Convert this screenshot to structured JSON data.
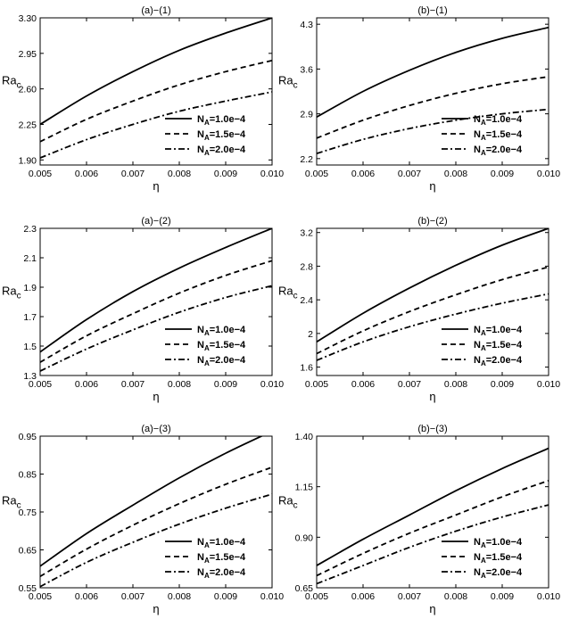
{
  "figure": {
    "line_color": "#000000",
    "line_styles": [
      "solid",
      "dashed",
      "dashdot"
    ]
  },
  "chart_data": [
    {
      "type": "line",
      "title": "(a)−(1)",
      "xlabel": "η",
      "ylabel_main": "Ra",
      "ylabel_sub": "c",
      "xlim": [
        0.005,
        0.01
      ],
      "ylim": [
        1.85,
        3.3
      ],
      "x_ticks": [
        0.005,
        0.006,
        0.007,
        0.008,
        0.009,
        0.01
      ],
      "x_tick_labels": [
        "0.005",
        "0.006",
        "0.007",
        "0.008",
        "0.009",
        "0.010"
      ],
      "y_ticks": [
        1.9,
        2.25,
        2.6,
        2.95,
        3.3
      ],
      "y_tick_labels": [
        "1.90",
        "2.25",
        "2.60",
        "2.95",
        "3.30"
      ],
      "legend_position": "lower-right",
      "x": [
        0.005,
        0.006,
        0.007,
        0.008,
        0.009,
        0.01
      ],
      "series": [
        {
          "legend_main": "N",
          "legend_sub": "A",
          "legend_value": "=1.0e−4",
          "style": "solid",
          "values": [
            2.25,
            2.53,
            2.77,
            2.98,
            3.15,
            3.3
          ]
        },
        {
          "legend_main": "N",
          "legend_sub": "A",
          "legend_value": "=1.5e−4",
          "style": "dashed",
          "values": [
            2.08,
            2.3,
            2.48,
            2.64,
            2.77,
            2.88
          ]
        },
        {
          "legend_main": "N",
          "legend_sub": "A",
          "legend_value": "=2.0e−4",
          "style": "dashdot",
          "values": [
            1.92,
            2.1,
            2.25,
            2.38,
            2.48,
            2.57
          ]
        }
      ]
    },
    {
      "type": "line",
      "title": "(b)−(1)",
      "xlabel": "η",
      "ylabel_main": "Ra",
      "ylabel_sub": "c",
      "xlim": [
        0.005,
        0.01
      ],
      "ylim": [
        2.1,
        4.4
      ],
      "x_ticks": [
        0.005,
        0.006,
        0.007,
        0.008,
        0.009,
        0.01
      ],
      "x_tick_labels": [
        "0.005",
        "0.006",
        "0.007",
        "0.008",
        "0.009",
        "0.010"
      ],
      "y_ticks": [
        2.2,
        2.9,
        3.6,
        4.3
      ],
      "y_tick_labels": [
        "2.2",
        "2.9",
        "3.6",
        "4.3"
      ],
      "legend_position": "lower-right",
      "x": [
        0.005,
        0.006,
        0.007,
        0.008,
        0.009,
        0.01
      ],
      "series": [
        {
          "legend_main": "N",
          "legend_sub": "A",
          "legend_value": "=1.0e−4",
          "style": "solid",
          "values": [
            2.85,
            3.25,
            3.58,
            3.86,
            4.08,
            4.25
          ]
        },
        {
          "legend_main": "N",
          "legend_sub": "A",
          "legend_value": "=1.5e−4",
          "style": "dashed",
          "values": [
            2.52,
            2.8,
            3.03,
            3.22,
            3.37,
            3.48
          ]
        },
        {
          "legend_main": "N",
          "legend_sub": "A",
          "legend_value": "=2.0e−4",
          "style": "dashdot",
          "values": [
            2.28,
            2.5,
            2.67,
            2.8,
            2.9,
            2.97
          ]
        }
      ]
    },
    {
      "type": "line",
      "title": "(a)−(2)",
      "xlabel": "η",
      "ylabel_main": "Ra",
      "ylabel_sub": "c",
      "xlim": [
        0.005,
        0.01
      ],
      "ylim": [
        1.3,
        2.3
      ],
      "x_ticks": [
        0.005,
        0.006,
        0.007,
        0.008,
        0.009,
        0.01
      ],
      "x_tick_labels": [
        "0.005",
        "0.006",
        "0.007",
        "0.008",
        "0.009",
        "0.010"
      ],
      "y_ticks": [
        1.3,
        1.5,
        1.7,
        1.9,
        2.1,
        2.3
      ],
      "y_tick_labels": [
        "1.3",
        "1.5",
        "1.7",
        "1.9",
        "2.1",
        "2.3"
      ],
      "legend_position": "lower-right",
      "x": [
        0.005,
        0.006,
        0.007,
        0.008,
        0.009,
        0.01
      ],
      "series": [
        {
          "legend_main": "N",
          "legend_sub": "A",
          "legend_value": "=1.0e−4",
          "style": "solid",
          "values": [
            1.46,
            1.68,
            1.87,
            2.03,
            2.17,
            2.3
          ]
        },
        {
          "legend_main": "N",
          "legend_sub": "A",
          "legend_value": "=1.5e−4",
          "style": "dashed",
          "values": [
            1.39,
            1.57,
            1.72,
            1.86,
            1.98,
            2.08
          ]
        },
        {
          "legend_main": "N",
          "legend_sub": "A",
          "legend_value": "=2.0e−4",
          "style": "dashdot",
          "values": [
            1.33,
            1.48,
            1.61,
            1.73,
            1.83,
            1.91
          ]
        }
      ]
    },
    {
      "type": "line",
      "title": "(b)−(2)",
      "xlabel": "η",
      "ylabel_main": "Ra",
      "ylabel_sub": "c",
      "xlim": [
        0.005,
        0.01
      ],
      "ylim": [
        1.5,
        3.25
      ],
      "x_ticks": [
        0.005,
        0.006,
        0.007,
        0.008,
        0.009,
        0.01
      ],
      "x_tick_labels": [
        "0.005",
        "0.006",
        "0.007",
        "0.008",
        "0.009",
        "0.010"
      ],
      "y_ticks": [
        1.6,
        2.0,
        2.4,
        2.8,
        3.2
      ],
      "y_tick_labels": [
        "1.6",
        "2",
        "2.4",
        "2.8",
        "3.2"
      ],
      "legend_position": "lower-right",
      "x": [
        0.005,
        0.006,
        0.007,
        0.008,
        0.009,
        0.01
      ],
      "series": [
        {
          "legend_main": "N",
          "legend_sub": "A",
          "legend_value": "=1.0e−4",
          "style": "solid",
          "values": [
            1.9,
            2.24,
            2.54,
            2.81,
            3.05,
            3.25
          ]
        },
        {
          "legend_main": "N",
          "legend_sub": "A",
          "legend_value": "=1.5e−4",
          "style": "dashed",
          "values": [
            1.76,
            2.03,
            2.26,
            2.46,
            2.64,
            2.79
          ]
        },
        {
          "legend_main": "N",
          "legend_sub": "A",
          "legend_value": "=2.0e−4",
          "style": "dashdot",
          "values": [
            1.68,
            1.9,
            2.08,
            2.23,
            2.36,
            2.47
          ]
        }
      ]
    },
    {
      "type": "line",
      "title": "(a)−(3)",
      "xlabel": "η",
      "ylabel_main": "Ra",
      "ylabel_sub": "c",
      "xlim": [
        0.005,
        0.01
      ],
      "ylim": [
        0.55,
        0.95
      ],
      "x_ticks": [
        0.005,
        0.006,
        0.007,
        0.008,
        0.009,
        0.01
      ],
      "x_tick_labels": [
        "0.005",
        "0.006",
        "0.007",
        "0.008",
        "0.009",
        "0.010"
      ],
      "y_ticks": [
        0.55,
        0.65,
        0.75,
        0.85,
        0.95
      ],
      "y_tick_labels": [
        "0.55",
        "0.65",
        "0.75",
        "0.85",
        "0.95"
      ],
      "legend_position": "lower-right",
      "x": [
        0.005,
        0.006,
        0.007,
        0.008,
        0.009,
        0.01
      ],
      "series": [
        {
          "legend_main": "N",
          "legend_sub": "A",
          "legend_value": "=1.0e−4",
          "style": "solid",
          "values": [
            0.607,
            0.693,
            0.768,
            0.84,
            0.905,
            0.963
          ]
        },
        {
          "legend_main": "N",
          "legend_sub": "A",
          "legend_value": "=1.5e−4",
          "style": "dashed",
          "values": [
            0.58,
            0.652,
            0.715,
            0.772,
            0.823,
            0.868
          ]
        },
        {
          "legend_main": "N",
          "legend_sub": "A",
          "legend_value": "=2.0e−4",
          "style": "dashdot",
          "values": [
            0.553,
            0.617,
            0.67,
            0.718,
            0.76,
            0.797
          ]
        }
      ]
    },
    {
      "type": "line",
      "title": "(b)−(3)",
      "xlabel": "η",
      "ylabel_main": "Ra",
      "ylabel_sub": "c",
      "xlim": [
        0.005,
        0.01
      ],
      "ylim": [
        0.65,
        1.4
      ],
      "x_ticks": [
        0.005,
        0.006,
        0.007,
        0.008,
        0.009,
        0.01
      ],
      "x_tick_labels": [
        "0.005",
        "0.006",
        "0.007",
        "0.008",
        "0.009",
        "0.010"
      ],
      "y_ticks": [
        0.65,
        0.9,
        1.15,
        1.4
      ],
      "y_tick_labels": [
        "0.65",
        "0.90",
        "1.15",
        "1.40"
      ],
      "legend_position": "lower-right",
      "x": [
        0.005,
        0.006,
        0.007,
        0.008,
        0.009,
        0.01
      ],
      "series": [
        {
          "legend_main": "N",
          "legend_sub": "A",
          "legend_value": "=1.0e−4",
          "style": "solid",
          "values": [
            0.76,
            0.89,
            1.01,
            1.13,
            1.24,
            1.34
          ]
        },
        {
          "legend_main": "N",
          "legend_sub": "A",
          "legend_value": "=1.5e−4",
          "style": "dashed",
          "values": [
            0.71,
            0.82,
            0.92,
            1.01,
            1.1,
            1.18
          ]
        },
        {
          "legend_main": "N",
          "legend_sub": "A",
          "legend_value": "=2.0e−4",
          "style": "dashdot",
          "values": [
            0.67,
            0.76,
            0.85,
            0.93,
            1.0,
            1.06
          ]
        }
      ]
    }
  ]
}
